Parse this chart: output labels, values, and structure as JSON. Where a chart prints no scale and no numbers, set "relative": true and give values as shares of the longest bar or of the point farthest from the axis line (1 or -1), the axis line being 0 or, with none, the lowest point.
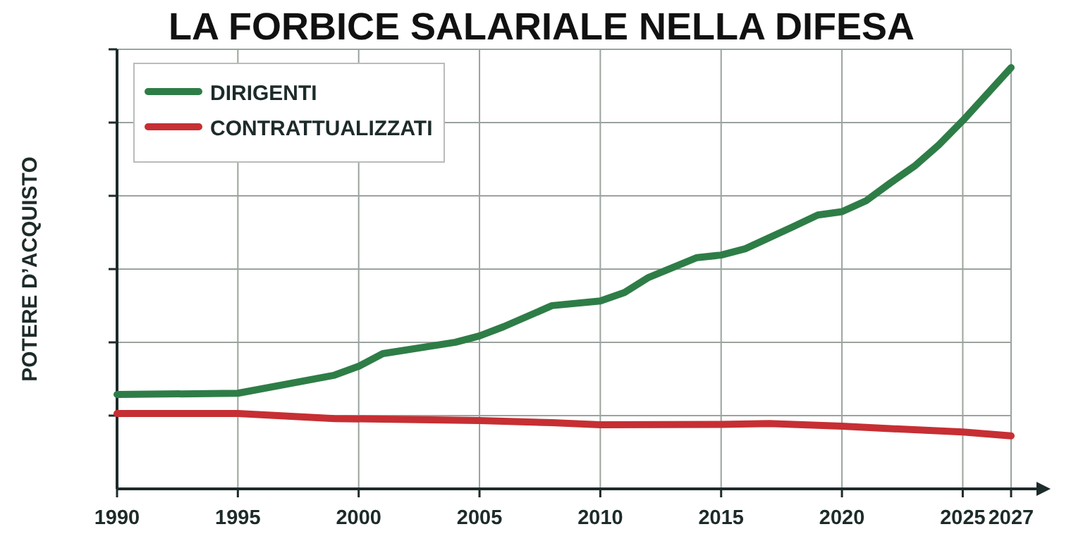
{
  "chart_data": {
    "type": "line",
    "title": "LA FORBICE SALARIALE NELLA DIFESA",
    "ylabel": "POTERE D’ACQUISTO",
    "relative": true,
    "xlim": [
      1990,
      2027
    ],
    "xticks": [
      1990,
      1995,
      2000,
      2005,
      2010,
      2015,
      2020,
      2025,
      2027
    ],
    "grid": true,
    "legend": "top left",
    "line_style": "solid",
    "marker": "none",
    "series": [
      {
        "name": "DIRIGENTI",
        "color": "#2e7d47",
        "x": [
          1990,
          1995,
          1999,
          2000,
          2001,
          2004,
          2005,
          2006,
          2008,
          2010,
          2011,
          2012,
          2014,
          2015,
          2016,
          2018,
          2019,
          2020,
          2021,
          2022,
          2023,
          2024,
          2025,
          2027
        ],
        "values": [
          0.224,
          0.227,
          0.27,
          0.291,
          0.321,
          0.348,
          0.363,
          0.385,
          0.435,
          0.446,
          0.466,
          0.502,
          0.549,
          0.555,
          0.57,
          0.623,
          0.65,
          0.658,
          0.684,
          0.726,
          0.766,
          0.816,
          0.874,
          1
        ]
      },
      {
        "name": "CONTRATTUALIZZATI",
        "color": "#c62f33",
        "x": [
          1990,
          1995,
          1999,
          2005,
          2008,
          2010,
          2015,
          2017,
          2020,
          2022,
          2025,
          2027
        ],
        "values": [
          0.179,
          0.179,
          0.167,
          0.162,
          0.157,
          0.152,
          0.153,
          0.155,
          0.149,
          0.143,
          0.135,
          0.126
        ]
      }
    ]
  }
}
